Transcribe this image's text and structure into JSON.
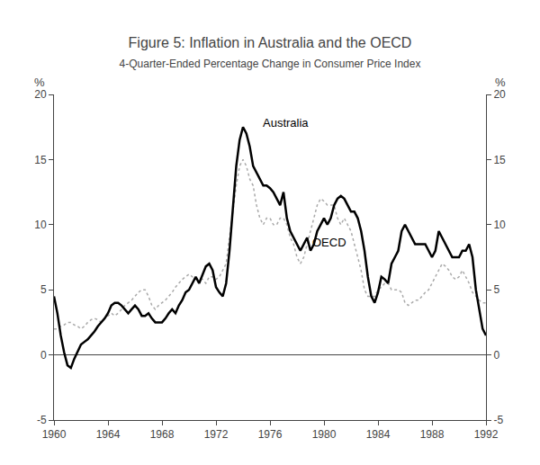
{
  "chart_data": {
    "type": "line",
    "title": "Figure 5: Inflation in Australia and the OECD",
    "subtitle": "4-Quarter-Ended Percentage Change in Consumer Price Index",
    "ylabel": "%",
    "y2label": "%",
    "xlim": [
      1960,
      1992
    ],
    "xticks": [
      1960,
      1964,
      1968,
      1972,
      1976,
      1980,
      1984,
      1988,
      1992
    ],
    "ylim": [
      -5,
      20
    ],
    "yticks": [
      -5,
      0,
      5,
      10,
      15,
      20
    ],
    "y2lim": [
      -5,
      20
    ],
    "y2ticks": [
      -5,
      0,
      5,
      10,
      15,
      20
    ],
    "grid": false,
    "x": [
      1960.0,
      1960.25,
      1960.5,
      1960.75,
      1961.0,
      1961.25,
      1961.5,
      1961.75,
      1962.0,
      1962.25,
      1962.5,
      1962.75,
      1963.0,
      1963.25,
      1963.5,
      1963.75,
      1964.0,
      1964.25,
      1964.5,
      1964.75,
      1965.0,
      1965.25,
      1965.5,
      1965.75,
      1966.0,
      1966.25,
      1966.5,
      1966.75,
      1967.0,
      1967.25,
      1967.5,
      1967.75,
      1968.0,
      1968.25,
      1968.5,
      1968.75,
      1969.0,
      1969.25,
      1969.5,
      1969.75,
      1970.0,
      1970.25,
      1970.5,
      1970.75,
      1971.0,
      1971.25,
      1971.5,
      1971.75,
      1972.0,
      1972.25,
      1972.5,
      1972.75,
      1973.0,
      1973.25,
      1973.5,
      1973.75,
      1974.0,
      1974.25,
      1974.5,
      1974.75,
      1975.0,
      1975.25,
      1975.5,
      1975.75,
      1976.0,
      1976.25,
      1976.5,
      1976.75,
      1977.0,
      1977.25,
      1977.5,
      1977.75,
      1978.0,
      1978.25,
      1978.5,
      1978.75,
      1979.0,
      1979.25,
      1979.5,
      1979.75,
      1980.0,
      1980.25,
      1980.5,
      1980.75,
      1981.0,
      1981.25,
      1981.5,
      1981.75,
      1982.0,
      1982.25,
      1982.5,
      1982.75,
      1983.0,
      1983.25,
      1983.5,
      1983.75,
      1984.0,
      1984.25,
      1984.5,
      1984.75,
      1985.0,
      1985.25,
      1985.5,
      1985.75,
      1986.0,
      1986.25,
      1986.5,
      1986.75,
      1987.0,
      1987.25,
      1987.5,
      1987.75,
      1988.0,
      1988.25,
      1988.5,
      1988.75,
      1989.0,
      1989.25,
      1989.5,
      1989.75,
      1990.0,
      1990.25,
      1990.5,
      1990.75,
      1991.0,
      1991.25,
      1991.5,
      1991.75,
      1992.0
    ],
    "series": [
      {
        "name": "OECD",
        "color": "#aaaaaa",
        "line_style": "dotted",
        "values": [
          2.0,
          2.0,
          2.2,
          2.3,
          2.5,
          2.5,
          2.3,
          2.2,
          2.0,
          2.2,
          2.5,
          2.7,
          2.8,
          2.7,
          2.5,
          2.8,
          3.0,
          3.2,
          3.0,
          3.2,
          3.5,
          3.8,
          4.0,
          4.2,
          4.5,
          4.8,
          5.0,
          5.0,
          4.5,
          3.8,
          3.5,
          3.8,
          4.0,
          4.2,
          4.5,
          4.8,
          5.2,
          5.5,
          5.8,
          6.0,
          6.2,
          6.0,
          5.8,
          5.8,
          5.8,
          5.5,
          6.0,
          6.0,
          5.8,
          6.0,
          6.5,
          7.0,
          9.0,
          11.0,
          13.0,
          14.5,
          15.0,
          14.5,
          13.5,
          13.0,
          11.5,
          10.5,
          10.0,
          10.5,
          10.5,
          10.0,
          10.0,
          10.5,
          10.5,
          10.0,
          9.0,
          8.5,
          7.5,
          7.0,
          7.5,
          8.5,
          9.5,
          10.5,
          11.5,
          12.0,
          11.8,
          11.5,
          11.5,
          11.5,
          10.5,
          10.0,
          10.5,
          10.0,
          9.5,
          8.5,
          7.5,
          6.5,
          5.0,
          4.5,
          4.5,
          4.5,
          5.0,
          5.2,
          5.5,
          5.5,
          5.0,
          5.0,
          5.0,
          4.8,
          4.0,
          3.8,
          4.0,
          4.2,
          4.2,
          4.5,
          4.8,
          5.0,
          5.5,
          6.0,
          6.5,
          7.0,
          6.8,
          6.5,
          6.0,
          5.8,
          6.0,
          6.5,
          6.0,
          5.5,
          4.8,
          4.5,
          4.2,
          4.0,
          4.0
        ]
      },
      {
        "name": "Australia",
        "color": "#000000",
        "line_style": "solid",
        "axis": "y2",
        "values": [
          4.5,
          3.2,
          1.5,
          0.2,
          -0.8,
          -1.0,
          -0.3,
          0.3,
          0.8,
          1.0,
          1.2,
          1.5,
          1.8,
          2.2,
          2.5,
          2.8,
          3.2,
          3.8,
          4.0,
          4.0,
          3.8,
          3.5,
          3.2,
          3.5,
          3.8,
          3.5,
          3.0,
          3.0,
          3.2,
          2.8,
          2.5,
          2.5,
          2.5,
          2.8,
          3.2,
          3.5,
          3.2,
          3.8,
          4.2,
          4.8,
          5.0,
          5.5,
          6.0,
          5.5,
          6.2,
          6.8,
          7.0,
          6.5,
          5.2,
          4.8,
          4.5,
          5.5,
          8.0,
          11.0,
          14.5,
          16.5,
          17.5,
          17.0,
          16.0,
          14.5,
          14.0,
          13.5,
          13.0,
          13.0,
          12.8,
          12.5,
          12.0,
          11.5,
          12.5,
          10.5,
          9.5,
          9.0,
          8.5,
          8.0,
          8.5,
          9.0,
          8.0,
          8.5,
          9.5,
          10.0,
          10.5,
          10.0,
          10.5,
          11.5,
          12.0,
          12.2,
          12.0,
          11.5,
          11.0,
          11.0,
          10.5,
          9.5,
          8.0,
          6.0,
          4.5,
          4.0,
          4.8,
          6.0,
          5.8,
          5.5,
          7.0,
          7.5,
          8.0,
          9.5,
          10.0,
          9.5,
          9.0,
          8.5,
          8.5,
          8.5,
          8.5,
          8.0,
          7.5,
          8.0,
          9.5,
          9.0,
          8.5,
          8.0,
          7.5,
          7.5,
          7.5,
          8.0,
          8.0,
          8.5,
          7.5,
          5.0,
          3.5,
          2.0,
          1.5
        ]
      }
    ],
    "annotations": [
      {
        "text": "Australia",
        "x": 1975.3,
        "y": 17.2
      },
      {
        "text": "OECD",
        "x": 1979.0,
        "y": 8.0
      }
    ]
  }
}
